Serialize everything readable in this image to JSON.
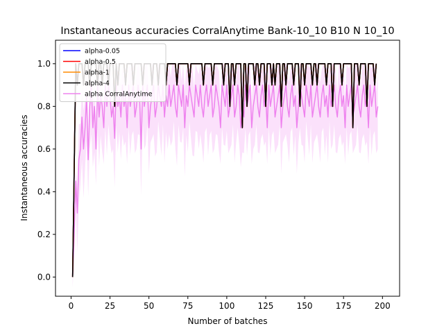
{
  "chart_data": {
    "type": "line",
    "title": "Instantaneous accuracies CorralAnytime Bank-10_10 B10 N 10_10",
    "xlabel": "Number of batches",
    "ylabel": "Instantaneous accuracies",
    "xlim": [
      -10,
      211
    ],
    "ylim": [
      -0.09,
      1.11
    ],
    "xticks": [
      0,
      25,
      50,
      75,
      100,
      125,
      150,
      175,
      200
    ],
    "yticks": [
      0.0,
      0.2,
      0.4,
      0.6,
      0.8,
      1.0
    ],
    "xtick_labels": [
      "0",
      "25",
      "50",
      "75",
      "100",
      "125",
      "150",
      "175",
      "200"
    ],
    "ytick_labels": [
      "0.0",
      "0.2",
      "0.4",
      "0.6",
      "0.8",
      "1.0"
    ],
    "grid": false,
    "legend_position": "top-left",
    "x_start": 1,
    "x_step": 1,
    "series": [
      {
        "name": "alpha-0.05",
        "color": "#0000ff",
        "values": [
          0,
          0.5,
          1.0,
          0.9,
          1.0,
          1.0,
          1.0,
          0.9,
          1.0,
          1.0,
          1.0,
          0.9,
          1.0,
          1.0,
          1.0,
          1.0,
          0.9,
          1.0,
          1.0,
          0.9,
          1.0,
          1.0,
          1.0,
          0.9,
          1.0,
          1.0,
          1.0,
          0.8,
          1.0,
          0.9,
          1.0,
          1.0,
          1.0,
          1.0,
          0.9,
          1.0,
          1.0,
          1.0,
          1.0,
          0.9,
          1.0,
          1.0,
          1.0,
          1.0,
          1.0,
          0.9,
          1.0,
          1.0,
          1.0,
          1.0,
          1.0,
          0.9,
          1.0,
          1.0,
          1.0,
          0.9,
          1.0,
          1.0,
          1.0,
          1.0,
          0.9,
          1.0,
          1.0,
          1.0,
          1.0,
          1.0,
          1.0,
          0.9,
          1.0,
          1.0,
          1.0,
          1.0,
          1.0,
          1.0,
          1.0,
          0.9,
          1.0,
          1.0,
          1.0,
          1.0,
          1.0,
          1.0,
          1.0,
          1.0,
          0.9,
          1.0,
          1.0,
          1.0,
          1.0,
          1.0,
          0.9,
          1.0,
          1.0,
          1.0,
          1.0,
          1.0,
          1.0,
          0.9,
          1.0,
          1.0,
          1.0,
          0.8,
          1.0,
          1.0,
          0.9,
          1.0,
          1.0,
          1.0,
          1.0,
          0.7,
          1.0,
          1.0,
          0.8,
          1.0,
          1.0,
          1.0,
          1.0,
          0.9,
          1.0,
          1.0,
          0.9,
          1.0,
          1.0,
          1.0,
          0.8,
          1.0,
          1.0,
          1.0,
          0.9,
          1.0,
          0.9,
          1.0,
          1.0,
          1.0,
          0.8,
          1.0,
          1.0,
          0.9,
          1.0,
          1.0,
          1.0,
          1.0,
          0.9,
          1.0,
          1.0,
          1.0,
          0.8,
          1.0,
          1.0,
          0.9,
          1.0,
          1.0,
          1.0,
          1.0,
          0.9,
          1.0,
          1.0,
          0.9,
          1.0,
          1.0,
          1.0,
          1.0,
          1.0,
          0.9,
          1.0,
          1.0,
          1.0,
          0.8,
          1.0,
          1.0,
          1.0,
          1.0,
          1.0,
          0.9,
          1.0,
          1.0,
          1.0,
          1.0,
          1.0,
          1.0,
          0.7,
          1.0,
          1.0,
          1.0,
          0.9,
          1.0,
          1.0,
          1.0,
          1.0,
          0.8,
          1.0,
          1.0,
          1.0,
          1.0,
          0.9,
          1.0
        ]
      },
      {
        "name": "alpha-0.5",
        "color": "#ff0000",
        "values": [
          0,
          0.5,
          1.0,
          0.9,
          1.0,
          1.0,
          1.0,
          0.9,
          1.0,
          1.0,
          1.0,
          0.9,
          1.0,
          1.0,
          1.0,
          1.0,
          0.9,
          1.0,
          1.0,
          0.9,
          1.0,
          1.0,
          1.0,
          0.9,
          1.0,
          1.0,
          1.0,
          0.8,
          1.0,
          0.9,
          1.0,
          1.0,
          1.0,
          1.0,
          0.9,
          1.0,
          1.0,
          1.0,
          1.0,
          0.9,
          1.0,
          1.0,
          1.0,
          1.0,
          1.0,
          0.9,
          1.0,
          1.0,
          1.0,
          1.0,
          1.0,
          0.9,
          1.0,
          1.0,
          1.0,
          0.9,
          1.0,
          1.0,
          1.0,
          1.0,
          0.9,
          1.0,
          1.0,
          1.0,
          1.0,
          1.0,
          1.0,
          0.9,
          1.0,
          1.0,
          1.0,
          1.0,
          1.0,
          1.0,
          1.0,
          0.9,
          1.0,
          1.0,
          1.0,
          1.0,
          1.0,
          1.0,
          1.0,
          1.0,
          0.9,
          1.0,
          1.0,
          1.0,
          1.0,
          1.0,
          0.9,
          1.0,
          1.0,
          1.0,
          1.0,
          1.0,
          1.0,
          0.9,
          1.0,
          1.0,
          1.0,
          0.8,
          1.0,
          1.0,
          0.9,
          1.0,
          1.0,
          1.0,
          1.0,
          0.7,
          1.0,
          1.0,
          0.8,
          1.0,
          1.0,
          1.0,
          1.0,
          0.9,
          1.0,
          1.0,
          0.9,
          1.0,
          1.0,
          1.0,
          0.8,
          1.0,
          1.0,
          1.0,
          0.9,
          1.0,
          0.9,
          1.0,
          1.0,
          1.0,
          0.8,
          1.0,
          1.0,
          0.9,
          1.0,
          1.0,
          1.0,
          1.0,
          0.9,
          1.0,
          1.0,
          1.0,
          0.8,
          1.0,
          1.0,
          0.9,
          1.0,
          1.0,
          1.0,
          1.0,
          0.9,
          1.0,
          1.0,
          0.9,
          1.0,
          1.0,
          1.0,
          1.0,
          1.0,
          0.9,
          1.0,
          1.0,
          1.0,
          0.8,
          1.0,
          1.0,
          1.0,
          1.0,
          1.0,
          0.9,
          1.0,
          1.0,
          1.0,
          1.0,
          1.0,
          1.0,
          0.7,
          1.0,
          1.0,
          1.0,
          0.9,
          1.0,
          1.0,
          1.0,
          1.0,
          0.8,
          1.0,
          1.0,
          1.0,
          1.0,
          0.9,
          1.0
        ]
      },
      {
        "name": "alpha-1",
        "color": "#ff8c00",
        "values": [
          0,
          0.5,
          1.0,
          0.9,
          1.0,
          1.0,
          1.0,
          0.9,
          1.0,
          1.0,
          1.0,
          0.9,
          1.0,
          1.0,
          1.0,
          1.0,
          0.9,
          1.0,
          1.0,
          0.9,
          1.0,
          1.0,
          1.0,
          0.9,
          1.0,
          1.0,
          1.0,
          0.8,
          1.0,
          0.9,
          1.0,
          1.0,
          1.0,
          1.0,
          0.9,
          1.0,
          1.0,
          1.0,
          1.0,
          0.9,
          1.0,
          1.0,
          1.0,
          1.0,
          1.0,
          0.9,
          1.0,
          1.0,
          1.0,
          1.0,
          1.0,
          0.9,
          1.0,
          1.0,
          1.0,
          0.9,
          1.0,
          1.0,
          1.0,
          1.0,
          0.9,
          1.0,
          1.0,
          1.0,
          1.0,
          1.0,
          1.0,
          0.9,
          1.0,
          1.0,
          1.0,
          1.0,
          1.0,
          1.0,
          1.0,
          0.9,
          1.0,
          1.0,
          1.0,
          1.0,
          1.0,
          1.0,
          1.0,
          1.0,
          0.9,
          1.0,
          1.0,
          1.0,
          1.0,
          1.0,
          0.9,
          1.0,
          1.0,
          1.0,
          1.0,
          1.0,
          1.0,
          0.9,
          1.0,
          1.0,
          1.0,
          0.8,
          1.0,
          1.0,
          0.9,
          1.0,
          1.0,
          1.0,
          1.0,
          0.7,
          1.0,
          1.0,
          0.8,
          1.0,
          1.0,
          1.0,
          1.0,
          0.9,
          1.0,
          1.0,
          0.9,
          1.0,
          1.0,
          1.0,
          0.8,
          1.0,
          1.0,
          1.0,
          0.9,
          1.0,
          0.9,
          1.0,
          1.0,
          1.0,
          0.8,
          1.0,
          1.0,
          0.9,
          1.0,
          1.0,
          1.0,
          1.0,
          0.9,
          1.0,
          1.0,
          1.0,
          0.8,
          1.0,
          1.0,
          0.9,
          1.0,
          1.0,
          1.0,
          1.0,
          0.9,
          1.0,
          1.0,
          0.9,
          1.0,
          1.0,
          1.0,
          1.0,
          1.0,
          0.9,
          1.0,
          1.0,
          1.0,
          0.8,
          1.0,
          1.0,
          1.0,
          1.0,
          1.0,
          0.9,
          1.0,
          1.0,
          1.0,
          1.0,
          1.0,
          1.0,
          0.7,
          1.0,
          1.0,
          1.0,
          0.9,
          1.0,
          1.0,
          1.0,
          1.0,
          0.8,
          1.0,
          1.0,
          1.0,
          1.0,
          0.9,
          1.0
        ]
      },
      {
        "name": "alpha-4",
        "color": "#000000",
        "values": [
          0,
          0.5,
          1.0,
          0.9,
          1.0,
          1.0,
          1.0,
          0.9,
          1.0,
          1.0,
          1.0,
          0.9,
          1.0,
          1.0,
          1.0,
          1.0,
          0.9,
          1.0,
          1.0,
          0.9,
          1.0,
          1.0,
          1.0,
          0.9,
          1.0,
          1.0,
          1.0,
          0.8,
          1.0,
          0.9,
          1.0,
          1.0,
          1.0,
          1.0,
          0.9,
          1.0,
          1.0,
          1.0,
          1.0,
          0.9,
          1.0,
          1.0,
          1.0,
          1.0,
          1.0,
          0.9,
          1.0,
          1.0,
          1.0,
          1.0,
          1.0,
          0.9,
          1.0,
          1.0,
          1.0,
          0.9,
          1.0,
          1.0,
          1.0,
          1.0,
          0.9,
          1.0,
          1.0,
          1.0,
          1.0,
          1.0,
          1.0,
          0.9,
          1.0,
          1.0,
          1.0,
          1.0,
          1.0,
          1.0,
          1.0,
          0.9,
          1.0,
          1.0,
          1.0,
          1.0,
          1.0,
          1.0,
          1.0,
          1.0,
          0.9,
          1.0,
          1.0,
          1.0,
          1.0,
          1.0,
          0.9,
          1.0,
          1.0,
          1.0,
          1.0,
          1.0,
          1.0,
          0.9,
          1.0,
          1.0,
          1.0,
          0.8,
          1.0,
          1.0,
          0.9,
          1.0,
          1.0,
          1.0,
          1.0,
          0.7,
          1.0,
          1.0,
          0.8,
          1.0,
          1.0,
          1.0,
          1.0,
          0.9,
          1.0,
          1.0,
          0.9,
          1.0,
          1.0,
          1.0,
          0.8,
          1.0,
          1.0,
          1.0,
          0.9,
          1.0,
          0.9,
          1.0,
          1.0,
          1.0,
          0.8,
          1.0,
          1.0,
          0.9,
          1.0,
          1.0,
          1.0,
          1.0,
          0.9,
          1.0,
          1.0,
          1.0,
          0.8,
          1.0,
          1.0,
          0.9,
          1.0,
          1.0,
          1.0,
          1.0,
          0.9,
          1.0,
          1.0,
          0.9,
          1.0,
          1.0,
          1.0,
          1.0,
          1.0,
          0.9,
          1.0,
          1.0,
          1.0,
          0.8,
          1.0,
          1.0,
          1.0,
          1.0,
          1.0,
          0.9,
          1.0,
          1.0,
          1.0,
          1.0,
          1.0,
          1.0,
          0.7,
          1.0,
          1.0,
          1.0,
          0.9,
          1.0,
          1.0,
          1.0,
          1.0,
          0.8,
          1.0,
          1.0,
          1.0,
          1.0,
          0.9,
          1.0
        ]
      },
      {
        "name": "alpha CorralAnytime",
        "color": "#ee82ee",
        "band_color": "#f8c8f8",
        "values": [
          0,
          0.2,
          0.45,
          0.3,
          0.55,
          0.6,
          0.75,
          0.6,
          0.7,
          0.85,
          0.55,
          0.8,
          0.9,
          0.7,
          0.8,
          0.6,
          0.9,
          0.75,
          0.85,
          0.8,
          0.7,
          0.9,
          0.8,
          0.9,
          0.85,
          0.75,
          0.8,
          0.65,
          0.9,
          0.8,
          0.85,
          0.75,
          0.9,
          0.8,
          0.85,
          0.7,
          0.9,
          0.8,
          0.85,
          0.9,
          0.75,
          0.8,
          0.9,
          0.85,
          0.6,
          0.9,
          0.8,
          0.85,
          0.9,
          0.7,
          0.8,
          0.85,
          0.9,
          0.75,
          0.8,
          0.9,
          0.85,
          0.8,
          0.9,
          0.75,
          0.85,
          0.8,
          0.9,
          0.8,
          0.85,
          0.9,
          0.8,
          0.75,
          0.9,
          0.85,
          0.8,
          0.9,
          0.7,
          0.85,
          0.8,
          0.9,
          0.85,
          0.8,
          0.75,
          0.9,
          0.85,
          0.8,
          0.9,
          0.8,
          0.75,
          0.85,
          0.9,
          0.8,
          0.85,
          0.9,
          0.75,
          0.8,
          0.9,
          0.85,
          0.8,
          0.7,
          0.9,
          0.85,
          0.8,
          0.9,
          0.75,
          0.8,
          0.85,
          0.9,
          0.75,
          0.8,
          0.9,
          0.85,
          0.7,
          0.8,
          0.75,
          0.9,
          0.8,
          0.85,
          0.9,
          0.7,
          0.8,
          0.85,
          0.9,
          0.8,
          0.75,
          0.85,
          0.9,
          0.8,
          0.85,
          0.7,
          0.9,
          0.8,
          0.85,
          0.9,
          0.75,
          0.8,
          0.85,
          0.9,
          0.7,
          0.8,
          0.85,
          0.9,
          0.8,
          0.75,
          0.85,
          0.9,
          0.8,
          0.85,
          0.7,
          0.8,
          0.9,
          0.85,
          0.8,
          0.75,
          0.9,
          0.85,
          0.8,
          0.9,
          0.75,
          0.8,
          0.85,
          0.9,
          0.8,
          0.75,
          0.85,
          0.9,
          0.8,
          0.85,
          0.75,
          0.9,
          0.8,
          0.85,
          0.9,
          0.8,
          0.75,
          0.85,
          0.9,
          0.8,
          0.85,
          0.7,
          0.9,
          0.8,
          0.85,
          0.9,
          0.75,
          0.8,
          0.85,
          0.9,
          0.8,
          0.75,
          0.85,
          0.9,
          0.8,
          0.85,
          0.7,
          0.9,
          0.8,
          0.85,
          0.9,
          0.75,
          0.8
        ]
      }
    ]
  }
}
